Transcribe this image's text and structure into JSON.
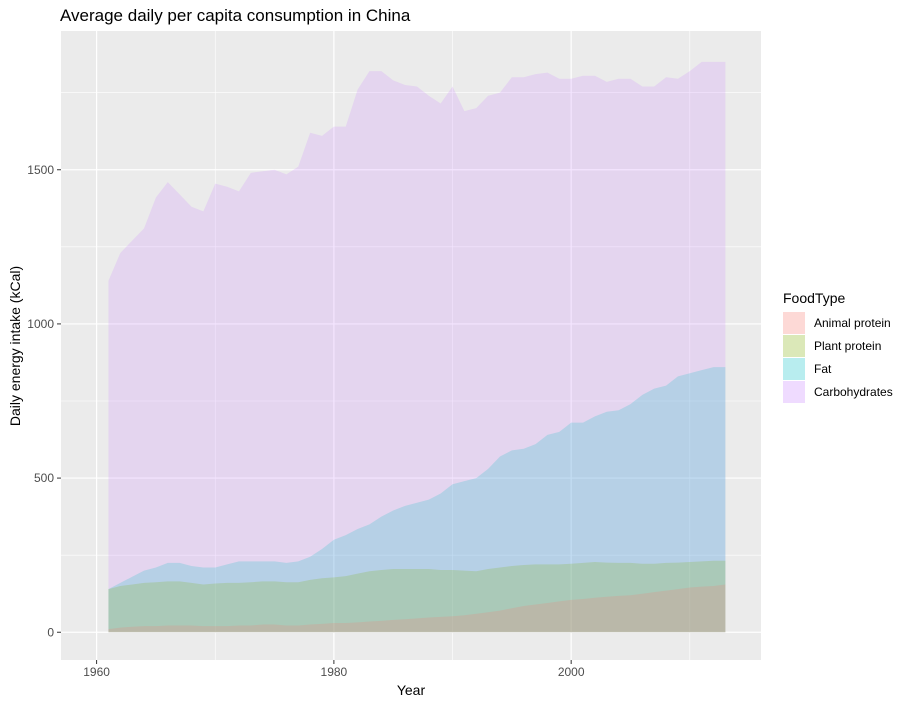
{
  "chart_data": {
    "type": "area",
    "stacking": "overlapping",
    "title": "Average daily per capita consumption in China",
    "xlabel": "Year",
    "ylabel": "Daily energy intake (kCal)",
    "xlim": [
      1957,
      2016
    ],
    "ylim": [
      -90,
      1950
    ],
    "x_ticks": [
      1960,
      1980,
      2000
    ],
    "y_ticks": [
      0,
      500,
      1000,
      1500
    ],
    "grid": true,
    "panel_background": "#ebebeb",
    "legend": {
      "title": "FoodType",
      "position": "right",
      "entries": [
        "Animal protein",
        "Plant protein",
        "Fat",
        "Carbohydrates"
      ]
    },
    "x": [
      1961,
      1962,
      1963,
      1964,
      1965,
      1966,
      1967,
      1968,
      1969,
      1970,
      1971,
      1972,
      1973,
      1974,
      1975,
      1976,
      1977,
      1978,
      1979,
      1980,
      1981,
      1982,
      1983,
      1984,
      1985,
      1986,
      1987,
      1988,
      1989,
      1990,
      1991,
      1992,
      1993,
      1994,
      1995,
      1996,
      1997,
      1998,
      1999,
      2000,
      2001,
      2002,
      2003,
      2004,
      2005,
      2006,
      2007,
      2008,
      2009,
      2010,
      2011,
      2012,
      2013
    ],
    "series": [
      {
        "name": "Animal protein",
        "color": "#f8766d",
        "values": [
          10,
          15,
          18,
          20,
          20,
          22,
          22,
          22,
          20,
          20,
          20,
          22,
          22,
          25,
          25,
          22,
          22,
          25,
          27,
          30,
          30,
          32,
          35,
          37,
          40,
          42,
          45,
          48,
          50,
          52,
          55,
          60,
          65,
          70,
          78,
          85,
          90,
          95,
          100,
          105,
          108,
          112,
          115,
          118,
          120,
          125,
          130,
          135,
          140,
          145,
          148,
          150,
          155
        ]
      },
      {
        "name": "Plant protein",
        "color": "#7cae00",
        "values": [
          140,
          150,
          155,
          160,
          162,
          165,
          165,
          160,
          155,
          158,
          160,
          160,
          162,
          165,
          165,
          162,
          162,
          170,
          175,
          178,
          182,
          190,
          198,
          202,
          205,
          205,
          205,
          205,
          202,
          202,
          200,
          198,
          205,
          210,
          215,
          218,
          220,
          220,
          220,
          222,
          225,
          228,
          226,
          225,
          225,
          222,
          222,
          225,
          226,
          228,
          230,
          232,
          232
        ]
      },
      {
        "name": "Fat",
        "color": "#00bfc4",
        "values": [
          140,
          160,
          180,
          200,
          210,
          225,
          225,
          215,
          210,
          210,
          220,
          230,
          230,
          230,
          230,
          225,
          230,
          245,
          270,
          300,
          315,
          335,
          350,
          375,
          395,
          410,
          420,
          430,
          450,
          480,
          490,
          500,
          530,
          570,
          590,
          595,
          610,
          640,
          650,
          680,
          680,
          700,
          715,
          720,
          740,
          770,
          790,
          800,
          830,
          840,
          850,
          860,
          860
        ]
      },
      {
        "name": "Carbohydrates",
        "color": "#c77cff",
        "values": [
          1140,
          1230,
          1270,
          1310,
          1410,
          1460,
          1420,
          1380,
          1365,
          1455,
          1445,
          1430,
          1490,
          1495,
          1500,
          1485,
          1510,
          1620,
          1610,
          1640,
          1640,
          1760,
          1820,
          1820,
          1790,
          1775,
          1770,
          1740,
          1715,
          1770,
          1690,
          1700,
          1740,
          1750,
          1800,
          1800,
          1810,
          1815,
          1795,
          1795,
          1805,
          1805,
          1785,
          1795,
          1795,
          1770,
          1770,
          1800,
          1795,
          1820,
          1850,
          1850,
          1850
        ]
      }
    ]
  }
}
